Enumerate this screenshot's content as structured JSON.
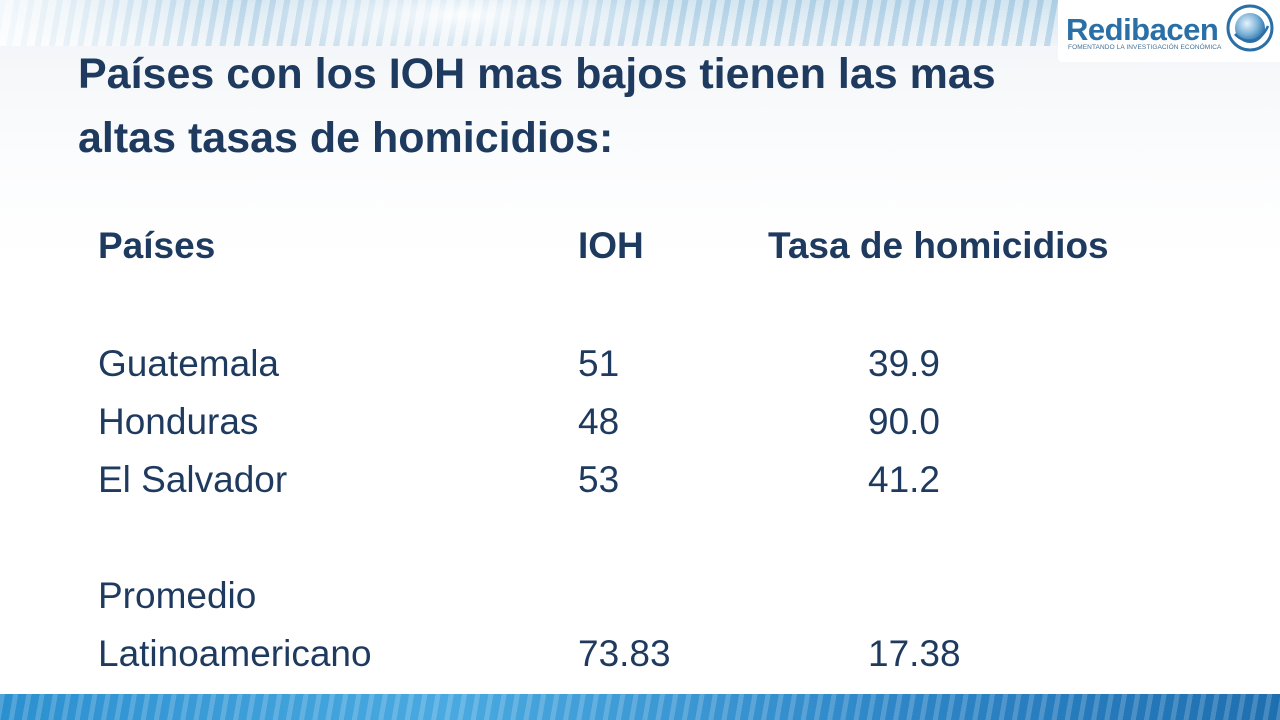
{
  "logo": {
    "name": "Redibacen",
    "tagline": "FOMENTANDO LA INVESTIGACIÓN ECONÓMICA"
  },
  "title": {
    "line1": "Países con los IOH mas bajos tienen las mas",
    "line2": "altas tasas de homicidios:"
  },
  "table": {
    "headers": [
      "Países",
      "IOH",
      "Tasa de homicidios"
    ],
    "rows": [
      {
        "country": "Guatemala",
        "ioh": "51",
        "rate": "39.9"
      },
      {
        "country": "Honduras",
        "ioh": "48",
        "rate": "90.0"
      },
      {
        "country": "El Salvador",
        "ioh": "53",
        "rate": "41.2"
      }
    ],
    "average": {
      "label_line1": "Promedio",
      "label_line2": "Latinoamericano",
      "ioh": "73.83",
      "rate": "17.38"
    }
  },
  "colors": {
    "title": "#1f3a5f",
    "logo": "#2a6fa6",
    "bottom_bar": "#2c8fcf"
  }
}
